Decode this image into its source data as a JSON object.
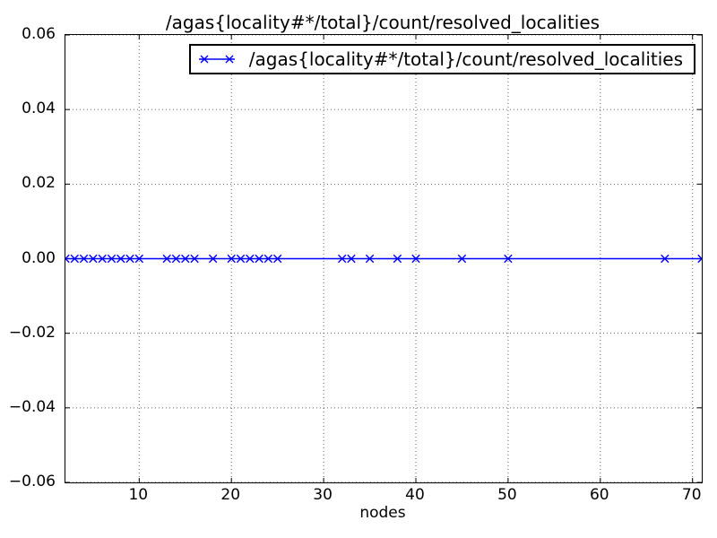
{
  "title": "/agas{locality#*/total}/count/resolved_localities",
  "xlabel": "nodes",
  "legend": {
    "label": "/agas{locality#*/total}/count/resolved_localities",
    "marker": "x",
    "line_color": "#0000ff"
  },
  "axes": {
    "xticklabels": [
      "10",
      "20",
      "30",
      "40",
      "50",
      "60",
      "70"
    ],
    "yticklabels": [
      "0.06",
      "0.04",
      "0.02",
      "0.00",
      "−0.02",
      "−0.04",
      "−0.06"
    ]
  },
  "chart_data": {
    "type": "line",
    "title": "/agas{locality#*/total}/count/resolved_localities",
    "xlabel": "nodes",
    "ylabel": "",
    "xlim": [
      2,
      71
    ],
    "ylim": [
      -0.06,
      0.06
    ],
    "xticks": [
      10,
      20,
      30,
      40,
      50,
      60,
      70
    ],
    "yticks": [
      0.06,
      0.04,
      0.02,
      0.0,
      -0.02,
      -0.04,
      -0.06
    ],
    "grid": true,
    "grid_style": "dotted",
    "grid_color": "#000000",
    "background": "#ffffff",
    "legend_position": "upper right",
    "series": [
      {
        "name": "/agas{locality#*/total}/count/resolved_localities",
        "color": "#0000ff",
        "marker": "x",
        "x": [
          2,
          3,
          4,
          5,
          6,
          7,
          8,
          9,
          10,
          13,
          14,
          15,
          16,
          18,
          20,
          21,
          22,
          23,
          24,
          25,
          32,
          33,
          35,
          38,
          40,
          45,
          50,
          67,
          71
        ],
        "y": [
          0,
          0,
          0,
          0,
          0,
          0,
          0,
          0,
          0,
          0,
          0,
          0,
          0,
          0,
          0,
          0,
          0,
          0,
          0,
          0,
          0,
          0,
          0,
          0,
          0,
          0,
          0,
          0,
          0
        ]
      }
    ]
  }
}
